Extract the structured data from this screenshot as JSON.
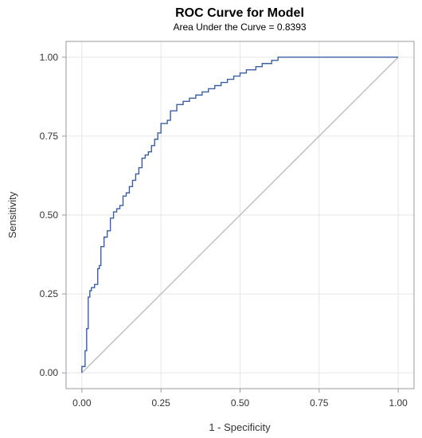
{
  "chart_data": {
    "type": "line",
    "title": "ROC Curve for Model",
    "subtitle": "Area Under the Curve = 0.8393",
    "xlabel": "1 - Specificity",
    "ylabel": "Sensitivity",
    "xlim": [
      -0.05,
      1.05
    ],
    "ylim": [
      -0.05,
      1.05
    ],
    "xticks": [
      0.0,
      0.25,
      0.5,
      0.75,
      1.0
    ],
    "yticks": [
      0.0,
      0.25,
      0.5,
      0.75,
      1.0
    ],
    "xtick_labels": [
      "0.00",
      "0.25",
      "0.50",
      "0.75",
      "1.00"
    ],
    "ytick_labels": [
      "0.00",
      "0.25",
      "0.50",
      "0.75",
      "1.00"
    ],
    "grid": true,
    "legend": "none",
    "colors": {
      "roc_line": "#3a5fa8",
      "reference_line": "#b9b9b9",
      "grid": "#e6e6e6",
      "frame": "#9a9a9a"
    },
    "series": [
      {
        "x": [
          0.0,
          0.0,
          0.01,
          0.01,
          0.015,
          0.015,
          0.02,
          0.02,
          0.025,
          0.025,
          0.03,
          0.03,
          0.04,
          0.04,
          0.05,
          0.05,
          0.055,
          0.055,
          0.06,
          0.06,
          0.07,
          0.07,
          0.08,
          0.08,
          0.09,
          0.09,
          0.1,
          0.1,
          0.11,
          0.11,
          0.12,
          0.12,
          0.13,
          0.13,
          0.14,
          0.14,
          0.15,
          0.15,
          0.16,
          0.16,
          0.17,
          0.17,
          0.18,
          0.18,
          0.19,
          0.19,
          0.2,
          0.2,
          0.21,
          0.21,
          0.22,
          0.22,
          0.23,
          0.23,
          0.24,
          0.24,
          0.25,
          0.25,
          0.27,
          0.27,
          0.28,
          0.28,
          0.3,
          0.3,
          0.32,
          0.32,
          0.34,
          0.34,
          0.36,
          0.36,
          0.38,
          0.38,
          0.4,
          0.4,
          0.42,
          0.42,
          0.44,
          0.44,
          0.46,
          0.46,
          0.48,
          0.48,
          0.5,
          0.5,
          0.52,
          0.52,
          0.55,
          0.55,
          0.57,
          0.57,
          0.6,
          0.6,
          0.62,
          0.62,
          0.75,
          0.75,
          1.0
        ],
        "y": [
          0.0,
          0.02,
          0.02,
          0.07,
          0.07,
          0.14,
          0.14,
          0.24,
          0.24,
          0.26,
          0.26,
          0.27,
          0.27,
          0.28,
          0.28,
          0.33,
          0.33,
          0.34,
          0.34,
          0.4,
          0.4,
          0.43,
          0.43,
          0.45,
          0.45,
          0.49,
          0.49,
          0.51,
          0.51,
          0.52,
          0.52,
          0.53,
          0.53,
          0.56,
          0.56,
          0.57,
          0.57,
          0.59,
          0.59,
          0.61,
          0.61,
          0.63,
          0.63,
          0.65,
          0.65,
          0.68,
          0.68,
          0.69,
          0.69,
          0.7,
          0.7,
          0.72,
          0.72,
          0.74,
          0.74,
          0.76,
          0.76,
          0.79,
          0.79,
          0.8,
          0.8,
          0.83,
          0.83,
          0.85,
          0.85,
          0.86,
          0.86,
          0.87,
          0.87,
          0.88,
          0.88,
          0.89,
          0.89,
          0.9,
          0.9,
          0.91,
          0.91,
          0.92,
          0.92,
          0.93,
          0.93,
          0.94,
          0.94,
          0.95,
          0.95,
          0.96,
          0.96,
          0.97,
          0.97,
          0.98,
          0.98,
          0.99,
          0.99,
          1.0,
          1.0,
          1.0,
          1.0
        ]
      },
      {
        "x": [
          0.0,
          1.0
        ],
        "y": [
          0.0,
          1.0
        ]
      }
    ]
  }
}
